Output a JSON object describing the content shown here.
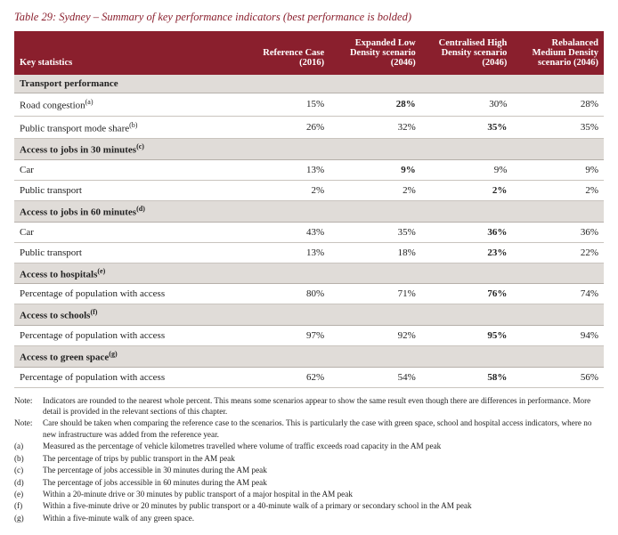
{
  "caption": "Table 29: Sydney – Summary of key performance indicators (best performance is bolded)",
  "colors": {
    "brand": "#8a1f2d",
    "section_bg": "#e0dcd8",
    "row_border": "#c9c4be",
    "text": "#222222",
    "bg": "#ffffff"
  },
  "columns": {
    "key": "Key statistics",
    "c1": "Reference Case (2016)",
    "c2": "Expanded Low Density scenario (2046)",
    "c3": "Centralised High Density scenario (2046)",
    "c4": "Rebalanced Medium Density scenario (2046)"
  },
  "sections": [
    {
      "title": "Transport performance",
      "rows": [
        {
          "label": "Road congestion",
          "sup": "(a)",
          "v": [
            "15%",
            "28%",
            "30%",
            "28%"
          ],
          "bold_idx": 1
        },
        {
          "label": "Public transport mode share",
          "sup": "(b)",
          "v": [
            "26%",
            "32%",
            "35%",
            "35%"
          ],
          "bold_idx": 2
        }
      ]
    },
    {
      "title": "Access to jobs in 30 minutes",
      "title_sup": "(c)",
      "rows": [
        {
          "label": "Car",
          "v": [
            "13%",
            "9%",
            "9%",
            "9%"
          ],
          "bold_idx": 1
        },
        {
          "label": "Public transport",
          "v": [
            "2%",
            "2%",
            "2%",
            "2%"
          ],
          "bold_idx": 2
        }
      ]
    },
    {
      "title": "Access to jobs in 60 minutes",
      "title_sup": "(d)",
      "rows": [
        {
          "label": "Car",
          "v": [
            "43%",
            "35%",
            "36%",
            "36%"
          ],
          "bold_idx": 2
        },
        {
          "label": "Public transport",
          "v": [
            "13%",
            "18%",
            "23%",
            "22%"
          ],
          "bold_idx": 2
        }
      ]
    },
    {
      "title": "Access to hospitals",
      "title_sup": "(e)",
      "rows": [
        {
          "label": "Percentage of population with access",
          "v": [
            "80%",
            "71%",
            "76%",
            "74%"
          ],
          "bold_idx": 2
        }
      ]
    },
    {
      "title": "Access to schools",
      "title_sup": "(f)",
      "rows": [
        {
          "label": "Percentage of population with access",
          "v": [
            "97%",
            "92%",
            "95%",
            "94%"
          ],
          "bold_idx": 2
        }
      ]
    },
    {
      "title": "Access to green space",
      "title_sup": "(g)",
      "rows": [
        {
          "label": "Percentage of population with access",
          "v": [
            "62%",
            "54%",
            "58%",
            "56%"
          ],
          "bold_idx": 2
        }
      ]
    }
  ],
  "notes": [
    {
      "tag": "Note:",
      "text": "Indicators are rounded to the nearest whole percent. This means some scenarios appear to show the same result even though there are differences in performance. More detail is provided in the relevant sections of this chapter."
    },
    {
      "tag": "Note:",
      "text": "Care should be taken when comparing the reference case to the scenarios. This is particularly the case with green space, school and hospital access indicators, where no new infrastructure was added from the reference year."
    },
    {
      "tag": "(a)",
      "text": "Measured as the percentage of vehicle kilometres travelled where volume of traffic exceeds road capacity in the AM peak"
    },
    {
      "tag": "(b)",
      "text": "The percentage of trips by public transport in the AM peak"
    },
    {
      "tag": "(c)",
      "text": "The percentage of jobs accessible in 30 minutes during the AM peak"
    },
    {
      "tag": "(d)",
      "text": "The percentage of jobs accessible in 60 minutes during the AM peak"
    },
    {
      "tag": "(e)",
      "text": "Within a 20-minute drive or 30 minutes by public transport of a major hospital in the AM peak"
    },
    {
      "tag": "(f)",
      "text": "Within a five-minute drive or 20 minutes by public transport or a 40-minute walk of a primary or secondary school in the AM peak"
    },
    {
      "tag": "(g)",
      "text": "Within a five-minute walk of any green space."
    }
  ]
}
